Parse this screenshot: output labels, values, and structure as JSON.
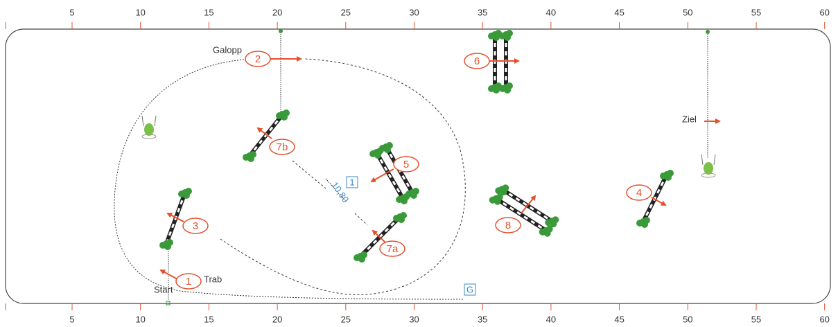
{
  "ruler": {
    "labels": [
      "5",
      "10",
      "15",
      "20",
      "25",
      "30",
      "35",
      "40",
      "45",
      "50",
      "55",
      "60"
    ]
  },
  "obstacles": {
    "o1": "1",
    "o2": "2",
    "o3": "3",
    "o4": "4",
    "o5": "5",
    "o6": "6",
    "o7a": "7a",
    "o7b": "7b",
    "o8": "8"
  },
  "course": {
    "gallop": "Galopp",
    "trot": "Trab",
    "start": "Start",
    "finish": "Ziel",
    "distance": "10,80",
    "marker_1": "1",
    "marker_g": "G"
  }
}
